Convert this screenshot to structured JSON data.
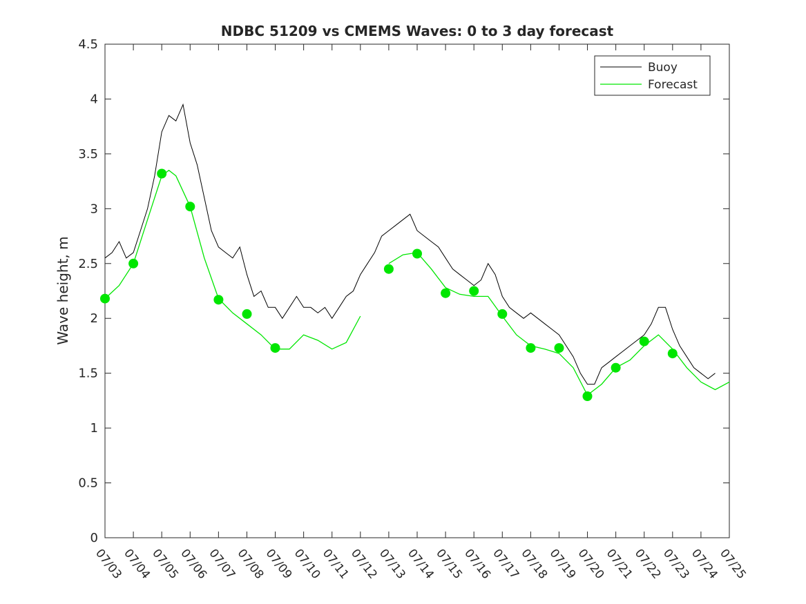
{
  "chart_data": {
    "type": "line",
    "title": "NDBC 51209 vs CMEMS Waves: 0 to 3 day forecast",
    "xlabel": "",
    "ylabel": "Wave height, m",
    "xlim": [
      "07/03",
      "07/25"
    ],
    "ylim": [
      0,
      4.5
    ],
    "x_ticks": [
      "07/03",
      "07/04",
      "07/05",
      "07/06",
      "07/07",
      "07/08",
      "07/09",
      "07/10",
      "07/11",
      "07/12",
      "07/13",
      "07/14",
      "07/15",
      "07/16",
      "07/17",
      "07/18",
      "07/19",
      "07/20",
      "07/21",
      "07/22",
      "07/23",
      "07/24",
      "07/25"
    ],
    "y_ticks": [
      "0",
      "0.5",
      "1",
      "1.5",
      "2",
      "2.5",
      "3",
      "3.5",
      "4",
      "4.5"
    ],
    "grid": false,
    "legend_position": "top-right",
    "series": [
      {
        "name": "Buoy",
        "color": "#000000",
        "style": "line",
        "x": [
          "07/03",
          "07/03 06:00",
          "07/03 12:00",
          "07/03 18:00",
          "07/04",
          "07/04 06:00",
          "07/04 12:00",
          "07/04 18:00",
          "07/05",
          "07/05 06:00",
          "07/05 12:00",
          "07/05 18:00",
          "07/06",
          "07/06 06:00",
          "07/06 12:00",
          "07/06 18:00",
          "07/07",
          "07/07 06:00",
          "07/07 12:00",
          "07/07 18:00",
          "07/08",
          "07/08 06:00",
          "07/08 12:00",
          "07/08 18:00",
          "07/09",
          "07/09 06:00",
          "07/09 12:00",
          "07/09 18:00",
          "07/10",
          "07/10 06:00",
          "07/10 12:00",
          "07/10 18:00",
          "07/11",
          "07/11 06:00",
          "07/11 12:00",
          "07/11 18:00",
          "07/12",
          "07/12 06:00",
          "07/12 12:00",
          "07/12 18:00",
          "07/13",
          "07/13 06:00",
          "07/13 12:00",
          "07/13 18:00",
          "07/14",
          "07/14 06:00",
          "07/14 12:00",
          "07/14 18:00",
          "07/15",
          "07/15 06:00",
          "07/15 12:00",
          "07/15 18:00",
          "07/16",
          "07/16 06:00",
          "07/16 12:00",
          "07/16 18:00",
          "07/17",
          "07/17 06:00",
          "07/17 12:00",
          "07/17 18:00",
          "07/18",
          "07/18 06:00",
          "07/18 12:00",
          "07/18 18:00",
          "07/19",
          "07/19 06:00",
          "07/19 12:00",
          "07/19 18:00",
          "07/20",
          "07/20 06:00",
          "07/20 12:00",
          "07/20 18:00",
          "07/21",
          "07/21 06:00",
          "07/21 12:00",
          "07/21 18:00",
          "07/22",
          "07/22 06:00",
          "07/22 12:00",
          "07/22 18:00",
          "07/23",
          "07/23 06:00",
          "07/23 12:00",
          "07/23 18:00",
          "07/24",
          "07/24 06:00",
          "07/24 12:00"
        ],
        "values": [
          2.55,
          2.6,
          2.7,
          2.55,
          2.6,
          2.8,
          3.0,
          3.3,
          3.7,
          3.85,
          3.8,
          3.95,
          3.6,
          3.4,
          3.1,
          2.8,
          2.65,
          2.6,
          2.55,
          2.65,
          2.4,
          2.2,
          2.25,
          2.1,
          2.1,
          2.0,
          2.1,
          2.2,
          2.1,
          2.1,
          2.05,
          2.1,
          2.0,
          2.1,
          2.2,
          2.25,
          2.4,
          2.5,
          2.6,
          2.75,
          2.8,
          2.85,
          2.9,
          2.95,
          2.8,
          2.75,
          2.7,
          2.65,
          2.55,
          2.45,
          2.4,
          2.35,
          2.3,
          2.35,
          2.5,
          2.4,
          2.2,
          2.1,
          2.05,
          2.0,
          2.05,
          2.0,
          1.95,
          1.9,
          1.85,
          1.75,
          1.65,
          1.5,
          1.4,
          1.4,
          1.55,
          1.6,
          1.65,
          1.7,
          1.75,
          1.8,
          1.85,
          1.95,
          2.1,
          2.1,
          1.9,
          1.75,
          1.65,
          1.55,
          1.5,
          1.45,
          1.5
        ]
      },
      {
        "name": "Forecast",
        "color": "#00e600",
        "style": "line",
        "x": [
          "07/03",
          "07/03 12:00",
          "07/04",
          "07/04 12:00",
          "07/05",
          "07/05 06:00",
          "07/05 12:00",
          "07/06",
          "07/06 12:00",
          "07/07",
          "07/07 12:00",
          "07/08",
          "07/08 12:00",
          "07/09",
          "07/09 12:00",
          "07/10",
          "07/10 12:00",
          "07/11",
          "07/11 12:00",
          "07/12"
        ],
        "values": [
          2.18,
          2.3,
          2.5,
          2.9,
          3.3,
          3.35,
          3.3,
          3.02,
          2.55,
          2.18,
          2.05,
          1.95,
          1.85,
          1.72,
          1.72,
          1.85,
          1.8,
          1.72,
          1.78,
          2.02
        ]
      },
      {
        "name": "",
        "color": "#00e600",
        "style": "line",
        "x": [
          "07/13",
          "07/13 12:00",
          "07/14",
          "07/14 12:00",
          "07/15",
          "07/15 12:00",
          "07/16",
          "07/16 12:00",
          "07/17",
          "07/17 12:00",
          "07/18",
          "07/18 12:00",
          "07/19",
          "07/19 12:00",
          "07/20",
          "07/20 12:00",
          "07/21",
          "07/21 12:00",
          "07/22",
          "07/22 12:00",
          "07/23",
          "07/23 12:00",
          "07/24",
          "07/24 12:00",
          "07/25"
        ],
        "values": [
          2.5,
          2.58,
          2.6,
          2.45,
          2.28,
          2.22,
          2.2,
          2.2,
          2.02,
          1.85,
          1.75,
          1.72,
          1.68,
          1.55,
          1.3,
          1.4,
          1.55,
          1.62,
          1.75,
          1.85,
          1.72,
          1.55,
          1.42,
          1.35,
          1.42
        ]
      }
    ],
    "markers": {
      "color": "#00e600",
      "x": [
        "07/03",
        "07/04",
        "07/05",
        "07/06",
        "07/07",
        "07/08",
        "07/09",
        "07/13",
        "07/14",
        "07/15",
        "07/16",
        "07/17",
        "07/18",
        "07/19",
        "07/20",
        "07/21",
        "07/22",
        "07/23"
      ],
      "values": [
        2.18,
        2.5,
        3.32,
        3.02,
        2.17,
        2.04,
        1.73,
        2.45,
        2.59,
        2.23,
        2.25,
        2.04,
        1.73,
        1.73,
        1.29,
        1.55,
        1.79,
        1.68
      ]
    }
  }
}
